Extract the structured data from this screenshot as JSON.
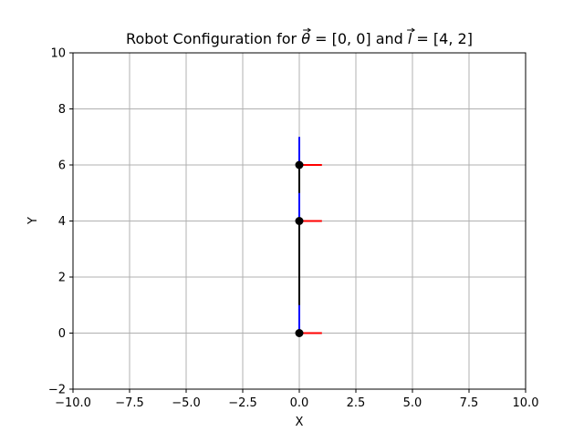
{
  "chart_data": {
    "type": "line",
    "title_parts": {
      "prefix": "Robot Configuration for ",
      "theta_symbol": "θ",
      "theta_value": " = [0, 0] and ",
      "l_symbol": "l",
      "l_value": " = [4, 2]"
    },
    "xlabel": "X",
    "ylabel": "Y",
    "xlim": [
      -10,
      10
    ],
    "ylim": [
      -2,
      10
    ],
    "grid": true,
    "x_ticks": [
      -10,
      -7.5,
      -5,
      -2.5,
      0,
      2.5,
      5,
      7.5,
      10
    ],
    "x_tick_labels": [
      "−10.0",
      "−7.5",
      "−5.0",
      "−2.5",
      "0.0",
      "2.5",
      "5.0",
      "7.5",
      "10.0"
    ],
    "y_ticks": [
      -2,
      0,
      2,
      4,
      6,
      8,
      10
    ],
    "y_tick_labels": [
      "−2",
      "0",
      "2",
      "4",
      "6",
      "8",
      "10"
    ],
    "links": [
      {
        "x": [
          0,
          0
        ],
        "y": [
          0,
          4
        ]
      },
      {
        "x": [
          0,
          0
        ],
        "y": [
          4,
          6
        ]
      }
    ],
    "joints": [
      {
        "x": 0,
        "y": 0
      },
      {
        "x": 0,
        "y": 4
      },
      {
        "x": 0,
        "y": 6
      }
    ],
    "frames": [
      {
        "origin": [
          0,
          0
        ],
        "x_axis_end": [
          1,
          0
        ],
        "y_axis_end": [
          0,
          1
        ]
      },
      {
        "origin": [
          0,
          4
        ],
        "x_axis_end": [
          1,
          4
        ],
        "y_axis_end": [
          0,
          5
        ]
      },
      {
        "origin": [
          0,
          6
        ],
        "x_axis_end": [
          1,
          6
        ],
        "y_axis_end": [
          0,
          7
        ]
      }
    ],
    "colors": {
      "link": "#000000",
      "joint": "#000000",
      "frame_x": "#ff0000",
      "frame_y": "#0000ff",
      "grid": "#b0b0b0"
    }
  }
}
